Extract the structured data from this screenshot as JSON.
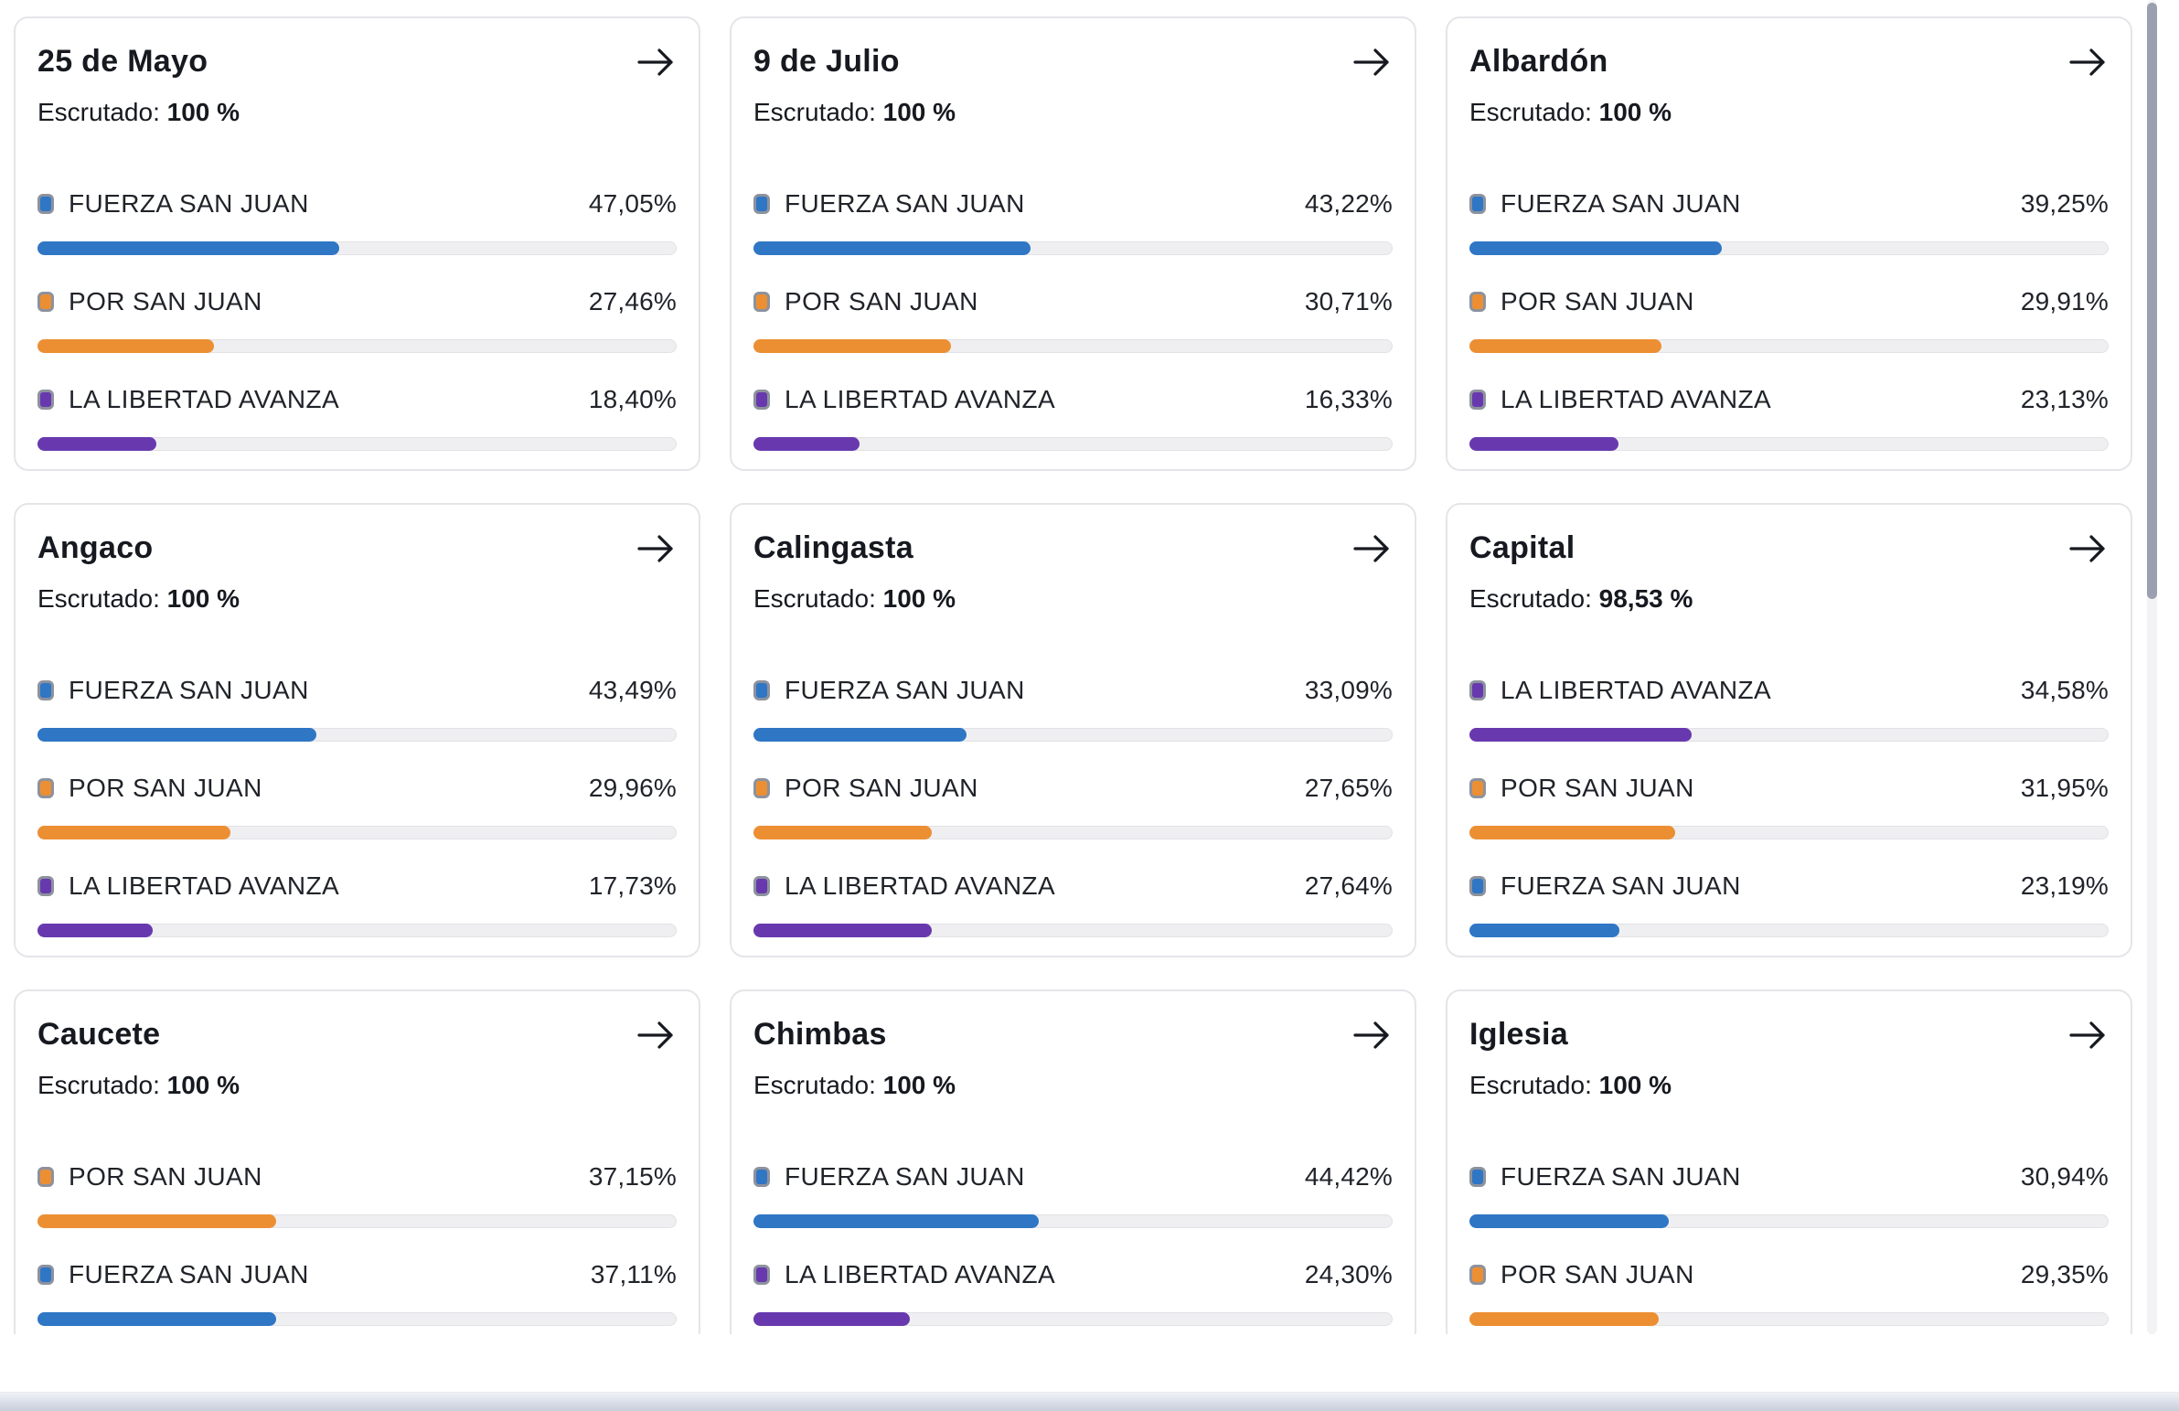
{
  "page": {
    "escrutado_label": "Escrutado:"
  },
  "icons": {
    "card_action": "arrow-right"
  },
  "parties": {
    "FUERZA SAN JUAN": "#2f76c5",
    "POR SAN JUAN": "#ec8f33",
    "LA LIBERTAD AVANZA": "#6839ae"
  },
  "ui_colors": {
    "card_border": "#e5e5e9",
    "bar_track": "#efeff1",
    "text": "#202329",
    "scrollbar_thumb": "#9aa0af"
  },
  "cards": [
    {
      "title": "25 de Mayo",
      "escrutado": "100 %",
      "results": [
        {
          "party": "FUERZA SAN JUAN",
          "pct": "47,05%",
          "value": 47.05
        },
        {
          "party": "POR SAN JUAN",
          "pct": "27,46%",
          "value": 27.46
        },
        {
          "party": "LA LIBERTAD AVANZA",
          "pct": "18,40%",
          "value": 18.4
        }
      ]
    },
    {
      "title": "9 de Julio",
      "escrutado": "100 %",
      "results": [
        {
          "party": "FUERZA SAN JUAN",
          "pct": "43,22%",
          "value": 43.22
        },
        {
          "party": "POR SAN JUAN",
          "pct": "30,71%",
          "value": 30.71
        },
        {
          "party": "LA LIBERTAD AVANZA",
          "pct": "16,33%",
          "value": 16.33
        }
      ]
    },
    {
      "title": "Albardón",
      "escrutado": "100 %",
      "results": [
        {
          "party": "FUERZA SAN JUAN",
          "pct": "39,25%",
          "value": 39.25
        },
        {
          "party": "POR SAN JUAN",
          "pct": "29,91%",
          "value": 29.91
        },
        {
          "party": "LA LIBERTAD AVANZA",
          "pct": "23,13%",
          "value": 23.13
        }
      ]
    },
    {
      "title": "Angaco",
      "escrutado": "100 %",
      "results": [
        {
          "party": "FUERZA SAN JUAN",
          "pct": "43,49%",
          "value": 43.49
        },
        {
          "party": "POR SAN JUAN",
          "pct": "29,96%",
          "value": 29.96
        },
        {
          "party": "LA LIBERTAD AVANZA",
          "pct": "17,73%",
          "value": 17.73
        }
      ]
    },
    {
      "title": "Calingasta",
      "escrutado": "100 %",
      "results": [
        {
          "party": "FUERZA SAN JUAN",
          "pct": "33,09%",
          "value": 33.09
        },
        {
          "party": "POR SAN JUAN",
          "pct": "27,65%",
          "value": 27.65
        },
        {
          "party": "LA LIBERTAD AVANZA",
          "pct": "27,64%",
          "value": 27.64
        }
      ]
    },
    {
      "title": "Capital",
      "escrutado": "98,53 %",
      "results": [
        {
          "party": "LA LIBERTAD AVANZA",
          "pct": "34,58%",
          "value": 34.58
        },
        {
          "party": "POR SAN JUAN",
          "pct": "31,95%",
          "value": 31.95
        },
        {
          "party": "FUERZA SAN JUAN",
          "pct": "23,19%",
          "value": 23.19
        }
      ]
    },
    {
      "title": "Caucete",
      "escrutado": "100 %",
      "results": [
        {
          "party": "POR SAN JUAN",
          "pct": "37,15%",
          "value": 37.15
        },
        {
          "party": "FUERZA SAN JUAN",
          "pct": "37,11%",
          "value": 37.11
        }
      ]
    },
    {
      "title": "Chimbas",
      "escrutado": "100 %",
      "results": [
        {
          "party": "FUERZA SAN JUAN",
          "pct": "44,42%",
          "value": 44.42
        },
        {
          "party": "LA LIBERTAD AVANZA",
          "pct": "24,30%",
          "value": 24.3
        }
      ]
    },
    {
      "title": "Iglesia",
      "escrutado": "100 %",
      "results": [
        {
          "party": "FUERZA SAN JUAN",
          "pct": "30,94%",
          "value": 30.94
        },
        {
          "party": "POR SAN JUAN",
          "pct": "29,35%",
          "value": 29.35
        }
      ]
    }
  ]
}
